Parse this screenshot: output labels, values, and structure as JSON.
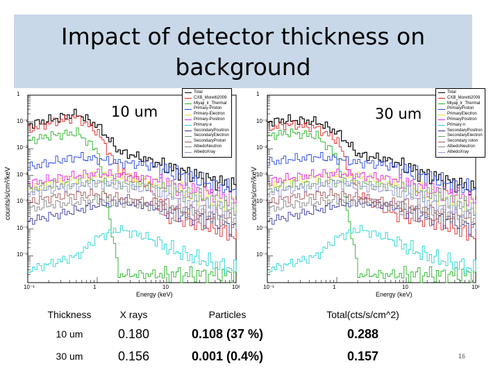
{
  "slide": {
    "title": "Impact of detector thickness on background",
    "page_number": "16"
  },
  "chart_data": [
    {
      "type": "line",
      "label": "10 um",
      "xlabel": "Energy (keV)",
      "ylabel": "counts/s/cm²/keV",
      "xscale": "log",
      "yscale": "log",
      "xlim": [
        0.1,
        100
      ],
      "ylim": [
        1e-07,
        1
      ],
      "x_tick_labels": [
        "10⁻¹",
        "1",
        "10",
        "10²"
      ],
      "y_tick_labels": [
        "1",
        "10⁻¹",
        "10⁻²",
        "10⁻³",
        "10⁻⁴",
        "10⁻⁵",
        "10⁻⁶"
      ],
      "legend_position": "top-right",
      "x": [
        0.1,
        0.2,
        0.5,
        1,
        2,
        5,
        10,
        20,
        50,
        100
      ],
      "series": [
        {
          "name": "Total",
          "color": "#000000",
          "values": [
            0.08,
            0.12,
            0.2,
            0.07,
            0.008,
            0.004,
            0.002,
            0.0012,
            0.0006,
            0.0004
          ]
        },
        {
          "name": "CXB_Moretti2009",
          "color": "#e02020",
          "values": [
            0.05,
            0.09,
            0.15,
            0.04,
            0.0015,
            0.0005,
            3e-05,
            2e-05,
            1e-05,
            5e-06
          ]
        },
        {
          "name": "Miyaji_lr_Thermal",
          "color": "#20b020",
          "values": [
            0.02,
            0.03,
            0.04,
            0.008,
            2e-07,
            2e-07,
            2e-07,
            2e-07,
            2e-07,
            2e-07
          ]
        },
        {
          "name": "Primary-Proton",
          "color": "#2040e0",
          "values": [
            0.002,
            0.003,
            0.005,
            0.004,
            0.003,
            0.0025,
            0.0015,
            0.0009,
            0.0004,
            0.0003
          ]
        },
        {
          "name": "Primary-Electron",
          "color": "#e0e020",
          "values": [
            0.0003,
            0.0005,
            0.0008,
            0.001,
            0.0009,
            0.0006,
            0.0004,
            0.0002,
            0.0001,
            8e-05
          ]
        },
        {
          "name": "Primary-Positron",
          "color": "#e020e0",
          "values": [
            0.0005,
            0.0007,
            0.001,
            0.0012,
            0.001,
            0.0008,
            0.0005,
            0.0003,
            0.0002,
            0.0001
          ]
        },
        {
          "name": "Primary-e",
          "color": "#20d0d0",
          "values": [
            3e-07,
            5e-07,
            1e-06,
            5e-06,
            1e-05,
            5e-06,
            2e-06,
            1e-06,
            5e-07,
            3e-07
          ]
        },
        {
          "name": "SecondaryPositron",
          "color": "#3030a0",
          "values": [
            2e-05,
            3e-05,
            5e-05,
            8e-05,
            0.0001,
            8e-05,
            5e-05,
            3e-05,
            2e-05,
            1e-05
          ]
        },
        {
          "name": "SecondaryElectron",
          "color": "#60a060",
          "values": [
            0.0003,
            0.0004,
            0.0005,
            0.0006,
            0.0005,
            0.0004,
            0.0003,
            0.0002,
            0.0001,
            5e-05
          ]
        },
        {
          "name": "SecondaryProton",
          "color": "#a05050",
          "values": [
            0.0001,
            0.00015,
            0.0002,
            0.0002,
            0.00015,
            0.0001,
            8e-05,
            5e-05,
            3e-05,
            2e-05
          ]
        },
        {
          "name": "AlbedoNeutron",
          "color": "#808080",
          "values": [
            5e-05,
            8e-05,
            0.0001,
            0.00012,
            0.0001,
            8e-05,
            5e-05,
            4e-05,
            3e-05,
            2e-05
          ]
        },
        {
          "name": "AlbedoXray",
          "color": "#9090d0",
          "values": [
            0.0002,
            0.0003,
            0.0004,
            0.0005,
            0.0004,
            0.0003,
            0.0002,
            0.0001,
            6e-05,
            4e-05
          ]
        }
      ]
    },
    {
      "type": "line",
      "label": "30 um",
      "xlabel": "Energy (keV)",
      "ylabel": "counts/s/cm²/keV",
      "xscale": "log",
      "yscale": "log",
      "xlim": [
        0.1,
        100
      ],
      "ylim": [
        1e-07,
        1
      ],
      "x_tick_labels": [
        "10⁻¹",
        "1",
        "10",
        "10²"
      ],
      "y_tick_labels": [
        "1",
        "10⁻¹",
        "10⁻²",
        "10⁻³",
        "10⁻⁴",
        "10⁻⁵",
        "10⁻⁶"
      ],
      "legend_position": "top-right",
      "x": [
        0.1,
        0.2,
        0.5,
        1,
        2,
        5,
        10,
        20,
        50,
        100
      ],
      "series": [
        {
          "name": "Total",
          "color": "#000000",
          "values": [
            0.1,
            0.12,
            0.1,
            0.04,
            0.006,
            0.004,
            0.002,
            0.001,
            0.0005,
            0.0003
          ]
        },
        {
          "name": "CXB_Moretti2009",
          "color": "#e02020",
          "values": [
            0.06,
            0.08,
            0.06,
            0.02,
            0.0002,
            5e-05,
            3e-05,
            2e-05,
            1e-05,
            5e-06
          ]
        },
        {
          "name": "Miyaji_lr_Thermal",
          "color": "#20b020",
          "values": [
            0.03,
            0.04,
            0.03,
            0.005,
            2e-07,
            2e-07,
            2e-07,
            2e-07,
            2e-07,
            2e-07
          ]
        },
        {
          "name": "PrimaryProton",
          "color": "#2040e0",
          "values": [
            0.003,
            0.004,
            0.005,
            0.004,
            0.003,
            0.0025,
            0.0015,
            0.0009,
            0.0004,
            0.0003
          ]
        },
        {
          "name": "PrimaryElectron",
          "color": "#e0e020",
          "values": [
            0.0004,
            0.0006,
            0.0009,
            0.001,
            0.0009,
            0.0006,
            0.0004,
            0.0002,
            0.0001,
            8e-05
          ]
        },
        {
          "name": "PrimaryPositron",
          "color": "#e020e0",
          "values": [
            0.0006,
            0.0008,
            0.0011,
            0.0012,
            0.001,
            0.0008,
            0.0005,
            0.0003,
            0.0002,
            0.0001
          ]
        },
        {
          "name": "Primary-n",
          "color": "#20d0d0",
          "values": [
            3e-07,
            5e-07,
            1e-06,
            5e-06,
            1e-05,
            5e-06,
            2e-06,
            1e-06,
            5e-07,
            3e-07
          ]
        },
        {
          "name": "SecondaryPositron",
          "color": "#3030a0",
          "values": [
            2e-05,
            3e-05,
            5e-05,
            8e-05,
            0.0001,
            8e-05,
            5e-05,
            3e-05,
            2e-05,
            1e-05
          ]
        },
        {
          "name": "SecondaryElectron",
          "color": "#60a060",
          "values": [
            0.0003,
            0.0004,
            0.0005,
            0.0006,
            0.0005,
            0.0004,
            0.0003,
            0.0002,
            0.0001,
            5e-05
          ]
        },
        {
          "name": "Secondary roton",
          "color": "#a05050",
          "values": [
            0.0001,
            0.00015,
            0.0002,
            0.0002,
            0.00015,
            0.0001,
            8e-05,
            5e-05,
            3e-05,
            2e-05
          ]
        },
        {
          "name": "AlbedoNeutron",
          "color": "#808080",
          "values": [
            5e-05,
            8e-05,
            0.0001,
            0.00012,
            0.0001,
            8e-05,
            5e-05,
            4e-05,
            3e-05,
            2e-05
          ]
        },
        {
          "name": "AlbedoXray",
          "color": "#9090d0",
          "values": [
            0.0002,
            0.0003,
            0.0004,
            0.0005,
            0.0004,
            0.0003,
            0.0002,
            0.0001,
            6e-05,
            4e-05
          ]
        }
      ]
    }
  ],
  "table": {
    "headers": [
      "Thickness",
      "X rays",
      "Particles",
      "Total(cts/s/cm^2)"
    ],
    "rows": [
      [
        "10 um",
        "0.180",
        "0.108 (37 %)",
        "0.288"
      ],
      [
        "30 um",
        "0.156",
        "0.001 (0.4%)",
        "0.157"
      ]
    ]
  }
}
